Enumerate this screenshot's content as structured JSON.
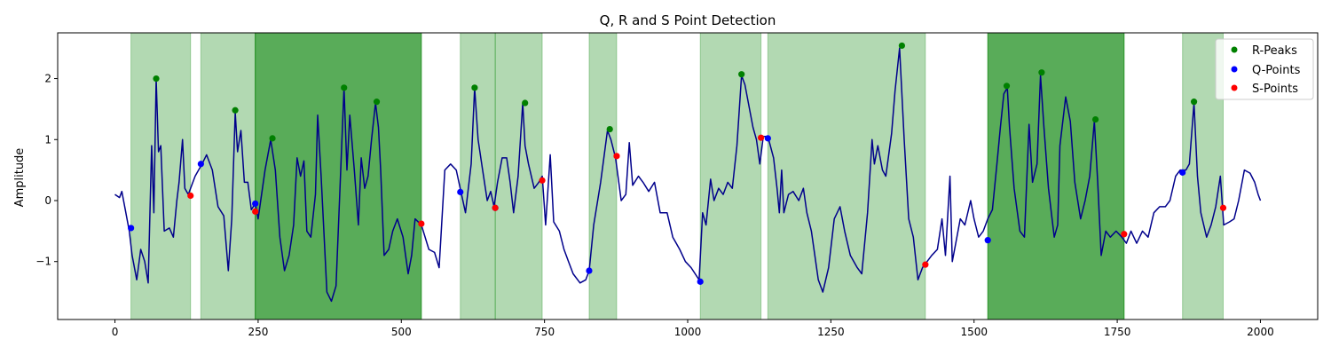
{
  "chart_data": {
    "type": "line",
    "title": "Q, R and S Point Detection",
    "xlabel": "",
    "ylabel": "Amplitude",
    "xlim": [
      -100,
      2100
    ],
    "ylim": [
      -1.95,
      2.75
    ],
    "xticks": [
      0,
      250,
      500,
      750,
      1000,
      1250,
      1500,
      1750,
      2000
    ],
    "yticks": [
      -1,
      0,
      1,
      2
    ],
    "grid": false,
    "legend_position": "top-right",
    "colors": {
      "signal": "#00008b",
      "r_peaks": "#008000",
      "q_points": "#0000ff",
      "s_points": "#ff0000",
      "span_fill": "#008000"
    },
    "signal_keypoints": [
      [
        0,
        0.1
      ],
      [
        8,
        0.05
      ],
      [
        12,
        0.15
      ],
      [
        18,
        -0.15
      ],
      [
        25,
        -0.5
      ],
      [
        30,
        -0.9
      ],
      [
        38,
        -1.3
      ],
      [
        45,
        -0.8
      ],
      [
        52,
        -1.0
      ],
      [
        58,
        -1.35
      ],
      [
        64,
        0.9
      ],
      [
        68,
        -0.2
      ],
      [
        72,
        2.0
      ],
      [
        76,
        0.8
      ],
      [
        80,
        0.9
      ],
      [
        86,
        -0.5
      ],
      [
        95,
        -0.45
      ],
      [
        102,
        -0.6
      ],
      [
        108,
        0.0
      ],
      [
        112,
        0.3
      ],
      [
        118,
        1.0
      ],
      [
        122,
        0.2
      ],
      [
        128,
        0.1
      ],
      [
        140,
        0.4
      ],
      [
        152,
        0.6
      ],
      [
        160,
        0.75
      ],
      [
        170,
        0.5
      ],
      [
        180,
        -0.1
      ],
      [
        190,
        -0.25
      ],
      [
        198,
        -1.15
      ],
      [
        204,
        -0.3
      ],
      [
        210,
        1.45
      ],
      [
        214,
        0.8
      ],
      [
        220,
        1.15
      ],
      [
        226,
        0.3
      ],
      [
        232,
        0.3
      ],
      [
        238,
        -0.15
      ],
      [
        245,
        -0.05
      ],
      [
        250,
        -0.3
      ],
      [
        262,
        0.5
      ],
      [
        272,
        1.0
      ],
      [
        280,
        0.5
      ],
      [
        288,
        -0.6
      ],
      [
        296,
        -1.15
      ],
      [
        304,
        -0.9
      ],
      [
        312,
        -0.4
      ],
      [
        318,
        0.7
      ],
      [
        324,
        0.4
      ],
      [
        330,
        0.65
      ],
      [
        335,
        -0.5
      ],
      [
        342,
        -0.6
      ],
      [
        350,
        0.1
      ],
      [
        354,
        1.4
      ],
      [
        360,
        0.4
      ],
      [
        370,
        -1.5
      ],
      [
        378,
        -1.65
      ],
      [
        386,
        -1.4
      ],
      [
        392,
        0.0
      ],
      [
        400,
        1.85
      ],
      [
        405,
        0.5
      ],
      [
        410,
        1.4
      ],
      [
        418,
        0.5
      ],
      [
        425,
        -0.4
      ],
      [
        430,
        0.7
      ],
      [
        436,
        0.2
      ],
      [
        442,
        0.4
      ],
      [
        448,
        1.0
      ],
      [
        455,
        1.6
      ],
      [
        460,
        1.2
      ],
      [
        464,
        0.5
      ],
      [
        470,
        -0.9
      ],
      [
        478,
        -0.8
      ],
      [
        485,
        -0.5
      ],
      [
        493,
        -0.3
      ],
      [
        503,
        -0.6
      ],
      [
        512,
        -1.2
      ],
      [
        518,
        -0.9
      ],
      [
        524,
        -0.3
      ],
      [
        535,
        -0.4
      ],
      [
        548,
        -0.8
      ],
      [
        558,
        -0.85
      ],
      [
        566,
        -1.1
      ],
      [
        576,
        0.5
      ],
      [
        586,
        0.6
      ],
      [
        596,
        0.5
      ],
      [
        604,
        0.15
      ],
      [
        612,
        -0.2
      ],
      [
        622,
        0.6
      ],
      [
        628,
        1.85
      ],
      [
        634,
        1.0
      ],
      [
        642,
        0.5
      ],
      [
        650,
        0.0
      ],
      [
        656,
        0.15
      ],
      [
        662,
        -0.1
      ],
      [
        668,
        0.3
      ],
      [
        676,
        0.7
      ],
      [
        684,
        0.7
      ],
      [
        690,
        0.3
      ],
      [
        696,
        -0.2
      ],
      [
        704,
        0.4
      ],
      [
        712,
        1.6
      ],
      [
        716,
        0.9
      ],
      [
        722,
        0.6
      ],
      [
        732,
        0.2
      ],
      [
        740,
        0.3
      ],
      [
        746,
        0.4
      ],
      [
        752,
        -0.4
      ],
      [
        760,
        0.75
      ],
      [
        766,
        -0.35
      ],
      [
        776,
        -0.5
      ],
      [
        784,
        -0.8
      ],
      [
        792,
        -1.0
      ],
      [
        800,
        -1.2
      ],
      [
        812,
        -1.35
      ],
      [
        822,
        -1.3
      ],
      [
        828,
        -1.15
      ],
      [
        836,
        -0.4
      ],
      [
        848,
        0.3
      ],
      [
        860,
        1.15
      ],
      [
        866,
        1.0
      ],
      [
        874,
        0.7
      ],
      [
        884,
        0.0
      ],
      [
        892,
        0.1
      ],
      [
        898,
        0.95
      ],
      [
        904,
        0.25
      ],
      [
        914,
        0.4
      ],
      [
        922,
        0.3
      ],
      [
        932,
        0.15
      ],
      [
        942,
        0.3
      ],
      [
        952,
        -0.2
      ],
      [
        964,
        -0.2
      ],
      [
        974,
        -0.6
      ],
      [
        986,
        -0.8
      ],
      [
        996,
        -1.0
      ],
      [
        1006,
        -1.1
      ],
      [
        1020,
        -1.3
      ],
      [
        1026,
        -0.2
      ],
      [
        1032,
        -0.4
      ],
      [
        1040,
        0.35
      ],
      [
        1046,
        0.0
      ],
      [
        1054,
        0.2
      ],
      [
        1062,
        0.1
      ],
      [
        1070,
        0.3
      ],
      [
        1078,
        0.2
      ],
      [
        1086,
        0.9
      ],
      [
        1094,
        2.05
      ],
      [
        1100,
        1.9
      ],
      [
        1108,
        1.5
      ],
      [
        1114,
        1.2
      ],
      [
        1120,
        1.0
      ],
      [
        1126,
        0.6
      ],
      [
        1132,
        1.05
      ],
      [
        1140,
        1.05
      ],
      [
        1150,
        0.7
      ],
      [
        1156,
        0.2
      ],
      [
        1160,
        -0.2
      ],
      [
        1164,
        0.5
      ],
      [
        1168,
        -0.2
      ],
      [
        1176,
        0.1
      ],
      [
        1184,
        0.15
      ],
      [
        1194,
        0.0
      ],
      [
        1202,
        0.2
      ],
      [
        1208,
        -0.2
      ],
      [
        1216,
        -0.5
      ],
      [
        1228,
        -1.3
      ],
      [
        1236,
        -1.5
      ],
      [
        1246,
        -1.1
      ],
      [
        1256,
        -0.3
      ],
      [
        1266,
        -0.1
      ],
      [
        1274,
        -0.5
      ],
      [
        1284,
        -0.9
      ],
      [
        1296,
        -1.1
      ],
      [
        1304,
        -1.2
      ],
      [
        1314,
        -0.2
      ],
      [
        1322,
        1.0
      ],
      [
        1326,
        0.6
      ],
      [
        1332,
        0.9
      ],
      [
        1340,
        0.5
      ],
      [
        1346,
        0.4
      ],
      [
        1356,
        1.1
      ],
      [
        1362,
        1.8
      ],
      [
        1370,
        2.5
      ],
      [
        1378,
        1.0
      ],
      [
        1386,
        -0.3
      ],
      [
        1394,
        -0.6
      ],
      [
        1402,
        -1.3
      ],
      [
        1410,
        -1.1
      ],
      [
        1418,
        -1.0
      ],
      [
        1426,
        -0.9
      ],
      [
        1436,
        -0.8
      ],
      [
        1444,
        -0.3
      ],
      [
        1450,
        -0.9
      ],
      [
        1458,
        0.4
      ],
      [
        1462,
        -1.0
      ],
      [
        1468,
        -0.7
      ],
      [
        1476,
        -0.3
      ],
      [
        1484,
        -0.4
      ],
      [
        1494,
        0.0
      ],
      [
        1500,
        -0.3
      ],
      [
        1508,
        -0.6
      ],
      [
        1516,
        -0.5
      ],
      [
        1524,
        -0.3
      ],
      [
        1532,
        -0.15
      ],
      [
        1540,
        0.6
      ],
      [
        1546,
        1.2
      ],
      [
        1552,
        1.75
      ],
      [
        1558,
        1.85
      ],
      [
        1562,
        1.2
      ],
      [
        1570,
        0.2
      ],
      [
        1580,
        -0.5
      ],
      [
        1588,
        -0.6
      ],
      [
        1596,
        1.25
      ],
      [
        1602,
        0.3
      ],
      [
        1610,
        0.6
      ],
      [
        1616,
        2.05
      ],
      [
        1622,
        1.2
      ],
      [
        1630,
        0.2
      ],
      [
        1640,
        -0.6
      ],
      [
        1646,
        -0.4
      ],
      [
        1650,
        0.9
      ],
      [
        1660,
        1.7
      ],
      [
        1668,
        1.3
      ],
      [
        1676,
        0.3
      ],
      [
        1686,
        -0.3
      ],
      [
        1694,
        0.0
      ],
      [
        1702,
        0.4
      ],
      [
        1710,
        1.3
      ],
      [
        1716,
        0.3
      ],
      [
        1722,
        -0.9
      ],
      [
        1730,
        -0.5
      ],
      [
        1738,
        -0.6
      ],
      [
        1748,
        -0.5
      ],
      [
        1758,
        -0.6
      ],
      [
        1766,
        -0.7
      ],
      [
        1774,
        -0.5
      ],
      [
        1784,
        -0.7
      ],
      [
        1794,
        -0.5
      ],
      [
        1804,
        -0.6
      ],
      [
        1814,
        -0.2
      ],
      [
        1824,
        -0.1
      ],
      [
        1834,
        -0.1
      ],
      [
        1842,
        0.0
      ],
      [
        1852,
        0.4
      ],
      [
        1860,
        0.5
      ],
      [
        1870,
        0.5
      ],
      [
        1876,
        0.6
      ],
      [
        1884,
        1.6
      ],
      [
        1890,
        0.4
      ],
      [
        1896,
        -0.2
      ],
      [
        1906,
        -0.6
      ],
      [
        1914,
        -0.4
      ],
      [
        1922,
        -0.1
      ],
      [
        1930,
        0.4
      ],
      [
        1936,
        -0.4
      ],
      [
        1946,
        -0.35
      ],
      [
        1954,
        -0.3
      ],
      [
        1962,
        0.0
      ],
      [
        1972,
        0.5
      ],
      [
        1982,
        0.45
      ],
      [
        1990,
        0.3
      ],
      [
        1996,
        0.1
      ],
      [
        2000,
        0.0
      ]
    ],
    "shaded_spans": [
      {
        "x0": 28,
        "x1": 132,
        "opacity": "light"
      },
      {
        "x0": 150,
        "x1": 245,
        "opacity": "light"
      },
      {
        "x0": 245,
        "x1": 535,
        "opacity": "dark"
      },
      {
        "x0": 603,
        "x1": 664,
        "opacity": "light"
      },
      {
        "x0": 664,
        "x1": 746,
        "opacity": "light"
      },
      {
        "x0": 828,
        "x1": 876,
        "opacity": "light"
      },
      {
        "x0": 1022,
        "x1": 1128,
        "opacity": "light"
      },
      {
        "x0": 1140,
        "x1": 1415,
        "opacity": "light"
      },
      {
        "x0": 1524,
        "x1": 1762,
        "opacity": "dark"
      },
      {
        "x0": 1864,
        "x1": 1935,
        "opacity": "light"
      }
    ],
    "series": [
      {
        "name": "R-Peaks",
        "points": [
          [
            72,
            2.0
          ],
          [
            210,
            1.48
          ],
          [
            275,
            1.02
          ],
          [
            400,
            1.85
          ],
          [
            457,
            1.62
          ],
          [
            628,
            1.85
          ],
          [
            716,
            1.6
          ],
          [
            864,
            1.17
          ],
          [
            1094,
            2.07
          ],
          [
            1374,
            2.54
          ],
          [
            1557,
            1.88
          ],
          [
            1618,
            2.1
          ],
          [
            1712,
            1.33
          ],
          [
            1884,
            1.62
          ]
        ]
      },
      {
        "name": "Q-Points",
        "points": [
          [
            28,
            -0.45
          ],
          [
            150,
            0.6
          ],
          [
            245,
            -0.05
          ],
          [
            603,
            0.14
          ],
          [
            664,
            -0.12
          ],
          [
            828,
            -1.15
          ],
          [
            1022,
            -1.33
          ],
          [
            1140,
            1.02
          ],
          [
            1524,
            -0.65
          ],
          [
            1864,
            0.46
          ]
        ]
      },
      {
        "name": "S-Points",
        "points": [
          [
            132,
            0.08
          ],
          [
            245,
            -0.18
          ],
          [
            535,
            -0.38
          ],
          [
            664,
            -0.12
          ],
          [
            746,
            0.33
          ],
          [
            876,
            0.73
          ],
          [
            1128,
            1.03
          ],
          [
            1415,
            -1.05
          ],
          [
            1762,
            -0.55
          ],
          [
            1935,
            -0.12
          ]
        ]
      }
    ]
  }
}
